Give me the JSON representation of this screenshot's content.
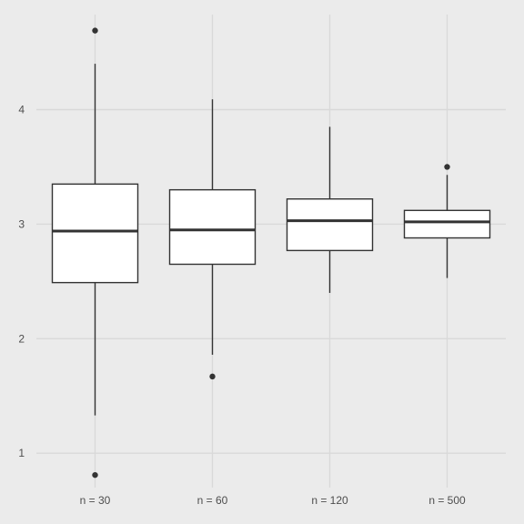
{
  "chart_data": {
    "type": "box",
    "title": "",
    "xlabel": "",
    "ylabel": "",
    "categories": [
      "n = 30",
      "n = 60",
      "n = 120",
      "n = 500"
    ],
    "ylim": [
      0.7,
      4.83
    ],
    "yticks": [
      1,
      2,
      3,
      4
    ],
    "grid": true,
    "boxes": [
      {
        "category": "n = 30",
        "whisker_low": 1.33,
        "q1": 2.49,
        "median": 2.94,
        "q3": 3.35,
        "whisker_high": 4.4,
        "outliers": [
          4.69,
          0.81
        ]
      },
      {
        "category": "n = 60",
        "whisker_low": 1.86,
        "q1": 2.65,
        "median": 2.95,
        "q3": 3.3,
        "whisker_high": 4.09,
        "outliers": [
          1.67
        ]
      },
      {
        "category": "n = 120",
        "whisker_low": 2.4,
        "q1": 2.77,
        "median": 3.03,
        "q3": 3.22,
        "whisker_high": 3.85,
        "outliers": []
      },
      {
        "category": "n = 500",
        "whisker_low": 2.53,
        "q1": 2.88,
        "median": 3.02,
        "q3": 3.12,
        "whisker_high": 3.43,
        "outliers": [
          3.5
        ]
      }
    ],
    "colors": {
      "panel": "#ebebeb",
      "grid": "#d9d9d9",
      "box_fill": "#ffffff",
      "line": "#333333",
      "text": "#4d4d4d"
    }
  }
}
